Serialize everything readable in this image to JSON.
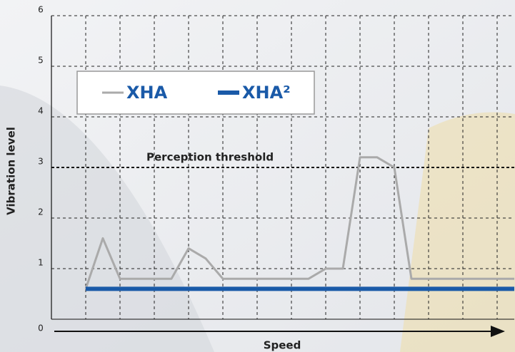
{
  "chart_data": {
    "type": "line",
    "x_label": "Speed",
    "y_label": "Vibration level",
    "x": [
      2,
      3,
      4,
      5,
      6,
      7,
      8,
      9,
      10,
      11,
      12,
      13,
      14,
      15,
      16,
      17,
      18,
      19,
      20,
      21,
      22,
      23,
      24,
      25,
      26,
      27
    ],
    "series": [
      {
        "name": "XHA",
        "color": "#aaaaaa",
        "values": [
          0.6,
          1.6,
          0.8,
          0.8,
          0.8,
          0.8,
          1.4,
          1.2,
          0.8,
          0.8,
          0.8,
          0.8,
          0.8,
          0.8,
          1.0,
          1.0,
          3.2,
          3.2,
          3.0,
          0.8,
          0.8,
          0.8,
          0.8,
          0.8,
          0.8,
          0.8
        ]
      },
      {
        "name": "XHA²",
        "color": "#1a5aa8",
        "values": [
          0.6,
          0.6,
          0.6,
          0.6,
          0.6,
          0.6,
          0.6,
          0.6,
          0.6,
          0.6,
          0.6,
          0.6,
          0.6,
          0.6,
          0.6,
          0.6,
          0.6,
          0.6,
          0.6,
          0.6,
          0.6,
          0.6,
          0.6,
          0.6,
          0.6,
          0.6
        ]
      }
    ],
    "xlim": [
      0,
      27
    ],
    "xticks": [
      2,
      4,
      6,
      8,
      10,
      12,
      14,
      16,
      18,
      20,
      22,
      24,
      26
    ],
    "ylim": [
      0,
      6
    ],
    "yticks": [
      0,
      1,
      2,
      3,
      4,
      5,
      6
    ],
    "grid": true,
    "threshold": {
      "value": 3,
      "label": "Perception threshold"
    }
  }
}
